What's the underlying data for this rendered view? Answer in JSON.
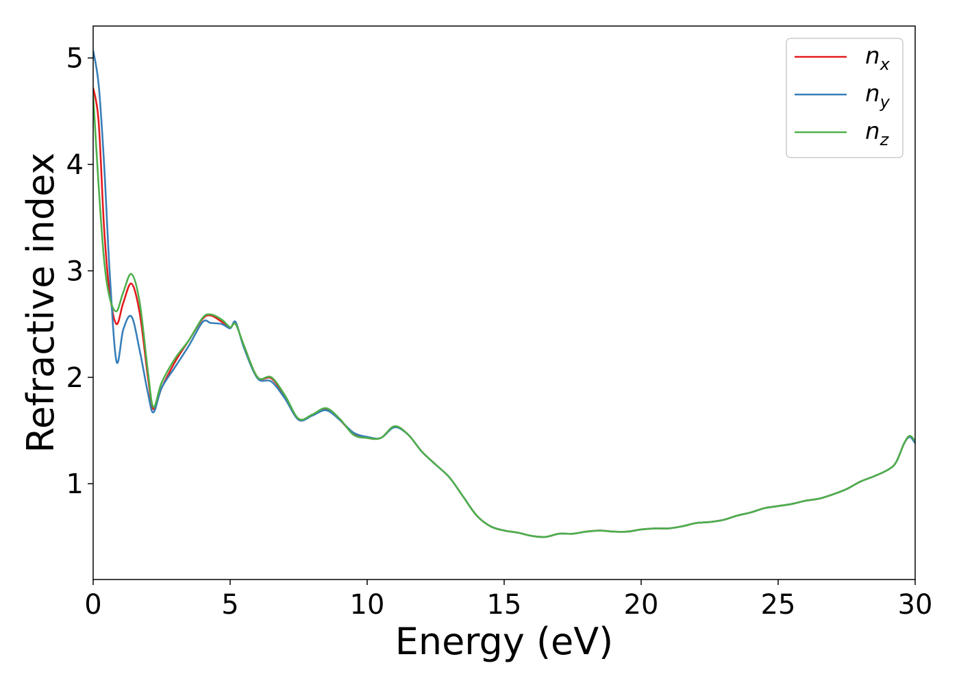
{
  "chart_data": {
    "type": "line",
    "xlabel": "Energy (eV)",
    "ylabel": "Refractive index",
    "xlim": [
      0,
      30
    ],
    "ylim": [
      0.1,
      5.3
    ],
    "x_ticks": [
      0,
      5,
      10,
      15,
      20,
      25,
      30
    ],
    "y_ticks": [
      1,
      2,
      3,
      4,
      5
    ],
    "grid": false,
    "legend_position": "top-right",
    "series": [
      {
        "name": "n_x",
        "legend_main": "n",
        "legend_sub": "x",
        "color": "#e31a1c",
        "x": [
          0,
          0.2,
          0.4,
          0.6,
          0.85,
          1.1,
          1.4,
          1.7,
          2.0,
          2.2,
          2.5,
          3.0,
          3.5,
          4.0,
          4.3,
          4.7,
          5.0,
          5.2,
          5.5,
          6.0,
          6.5,
          7.0,
          7.5,
          8.0,
          8.5,
          9.0,
          9.5,
          10.0,
          10.5,
          11.0,
          11.5,
          12.0,
          12.5,
          13.0,
          13.5,
          14.0,
          14.5,
          15.0,
          15.5,
          16.0,
          16.5,
          17.0,
          17.5,
          18.0,
          18.5,
          19.0,
          19.5,
          20.0,
          20.5,
          21.0,
          21.5,
          22.0,
          22.5,
          23.0,
          23.5,
          24.0,
          24.5,
          25.0,
          25.5,
          26.0,
          26.5,
          27.0,
          27.5,
          28.0,
          28.5,
          29.0,
          29.3,
          29.6,
          29.8,
          30.0
        ],
        "values": [
          4.72,
          4.4,
          3.4,
          2.8,
          2.5,
          2.7,
          2.88,
          2.6,
          2.0,
          1.7,
          1.9,
          2.15,
          2.35,
          2.55,
          2.58,
          2.52,
          2.47,
          2.5,
          2.3,
          2.0,
          1.99,
          1.82,
          1.6,
          1.65,
          1.7,
          1.6,
          1.47,
          1.43,
          1.43,
          1.54,
          1.46,
          1.3,
          1.18,
          1.06,
          0.88,
          0.7,
          0.6,
          0.56,
          0.54,
          0.51,
          0.5,
          0.53,
          0.53,
          0.55,
          0.56,
          0.55,
          0.55,
          0.57,
          0.58,
          0.58,
          0.6,
          0.63,
          0.64,
          0.66,
          0.7,
          0.73,
          0.77,
          0.79,
          0.81,
          0.84,
          0.86,
          0.9,
          0.95,
          1.02,
          1.07,
          1.13,
          1.2,
          1.38,
          1.44,
          1.39
        ]
      },
      {
        "name": "n_y",
        "legend_main": "n",
        "legend_sub": "y",
        "color": "#377eb8",
        "x": [
          0,
          0.2,
          0.4,
          0.6,
          0.85,
          1.1,
          1.4,
          1.7,
          2.0,
          2.2,
          2.5,
          3.0,
          3.5,
          4.0,
          4.3,
          4.7,
          5.0,
          5.2,
          5.5,
          6.0,
          6.5,
          7.0,
          7.5,
          8.0,
          8.5,
          9.0,
          9.5,
          10.0,
          10.5,
          11.0,
          11.5,
          12.0,
          12.5,
          13.0,
          13.5,
          14.0,
          14.5,
          15.0,
          15.5,
          16.0,
          16.5,
          17.0,
          17.5,
          18.0,
          18.5,
          19.0,
          19.5,
          20.0,
          20.5,
          21.0,
          21.5,
          22.0,
          22.5,
          23.0,
          23.5,
          24.0,
          24.5,
          25.0,
          25.5,
          26.0,
          26.5,
          27.0,
          27.5,
          28.0,
          28.5,
          29.0,
          29.3,
          29.6,
          29.8,
          30.0
        ],
        "values": [
          5.07,
          4.75,
          4.0,
          3.0,
          2.15,
          2.45,
          2.57,
          2.25,
          1.85,
          1.67,
          1.9,
          2.1,
          2.3,
          2.52,
          2.51,
          2.5,
          2.46,
          2.52,
          2.28,
          1.99,
          1.96,
          1.8,
          1.6,
          1.64,
          1.69,
          1.6,
          1.48,
          1.44,
          1.43,
          1.53,
          1.46,
          1.3,
          1.18,
          1.06,
          0.88,
          0.7,
          0.6,
          0.56,
          0.54,
          0.51,
          0.5,
          0.53,
          0.53,
          0.55,
          0.56,
          0.55,
          0.55,
          0.57,
          0.58,
          0.58,
          0.6,
          0.63,
          0.64,
          0.66,
          0.7,
          0.73,
          0.77,
          0.79,
          0.81,
          0.84,
          0.86,
          0.9,
          0.95,
          1.02,
          1.07,
          1.13,
          1.2,
          1.38,
          1.44,
          1.38
        ]
      },
      {
        "name": "n_z",
        "legend_main": "n",
        "legend_sub": "z",
        "color": "#4daf4a",
        "x": [
          0,
          0.2,
          0.4,
          0.6,
          0.85,
          1.1,
          1.4,
          1.7,
          2.0,
          2.2,
          2.5,
          3.0,
          3.5,
          4.0,
          4.3,
          4.7,
          5.0,
          5.2,
          5.5,
          6.0,
          6.5,
          7.0,
          7.5,
          8.0,
          8.5,
          9.0,
          9.5,
          10.0,
          10.5,
          11.0,
          11.5,
          12.0,
          12.5,
          13.0,
          13.5,
          14.0,
          14.5,
          15.0,
          15.5,
          16.0,
          16.5,
          17.0,
          17.5,
          18.0,
          18.5,
          19.0,
          19.5,
          20.0,
          20.5,
          21.0,
          21.5,
          22.0,
          22.5,
          23.0,
          23.5,
          24.0,
          24.5,
          25.0,
          25.5,
          26.0,
          26.5,
          27.0,
          27.5,
          28.0,
          28.5,
          29.0,
          29.3,
          29.6,
          29.8,
          30.0
        ],
        "values": [
          4.65,
          3.8,
          3.1,
          2.75,
          2.62,
          2.8,
          2.97,
          2.7,
          2.05,
          1.72,
          1.95,
          2.18,
          2.35,
          2.56,
          2.59,
          2.54,
          2.47,
          2.5,
          2.3,
          2.0,
          2.0,
          1.83,
          1.61,
          1.65,
          1.71,
          1.61,
          1.46,
          1.43,
          1.43,
          1.54,
          1.46,
          1.3,
          1.18,
          1.06,
          0.88,
          0.7,
          0.6,
          0.56,
          0.54,
          0.51,
          0.5,
          0.53,
          0.53,
          0.55,
          0.56,
          0.55,
          0.55,
          0.57,
          0.58,
          0.58,
          0.6,
          0.63,
          0.64,
          0.66,
          0.7,
          0.73,
          0.77,
          0.79,
          0.81,
          0.84,
          0.86,
          0.9,
          0.95,
          1.02,
          1.07,
          1.13,
          1.2,
          1.38,
          1.45,
          1.4
        ]
      }
    ]
  }
}
